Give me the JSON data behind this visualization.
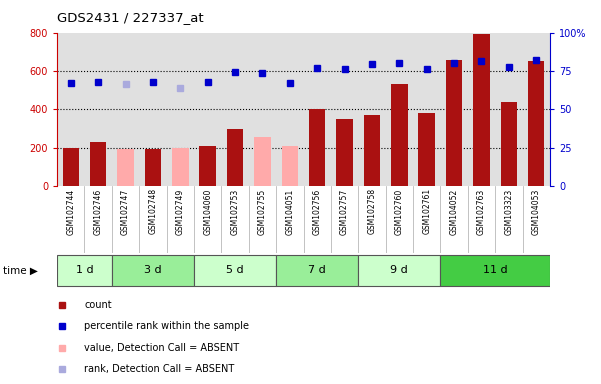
{
  "title": "GDS2431 / 227337_at",
  "samples": [
    "GSM102744",
    "GSM102746",
    "GSM102747",
    "GSM102748",
    "GSM102749",
    "GSM104060",
    "GSM102753",
    "GSM102755",
    "GSM104051",
    "GSM102756",
    "GSM102757",
    "GSM102758",
    "GSM102760",
    "GSM102761",
    "GSM104052",
    "GSM102763",
    "GSM103323",
    "GSM104053"
  ],
  "count_values": [
    200,
    230,
    195,
    195,
    200,
    210,
    300,
    255,
    210,
    400,
    350,
    370,
    535,
    380,
    660,
    795,
    440,
    650
  ],
  "absent_bar_indices": [
    2,
    4,
    7,
    8
  ],
  "percentile_rank": [
    540,
    545,
    535,
    545,
    510,
    545,
    595,
    590,
    540,
    615,
    610,
    635,
    640,
    610,
    640,
    650,
    620,
    655
  ],
  "absent_dot_indices": [
    2,
    4
  ],
  "groups": [
    {
      "label": "1 d",
      "start": 0,
      "end": 2,
      "color": "#ccffcc"
    },
    {
      "label": "3 d",
      "start": 2,
      "end": 5,
      "color": "#99ee99"
    },
    {
      "label": "5 d",
      "start": 5,
      "end": 8,
      "color": "#ccffcc"
    },
    {
      "label": "7 d",
      "start": 8,
      "end": 11,
      "color": "#99ee99"
    },
    {
      "label": "9 d",
      "start": 11,
      "end": 14,
      "color": "#ccffcc"
    },
    {
      "label": "11 d",
      "start": 14,
      "end": 18,
      "color": "#44cc44"
    }
  ],
  "ylim_left": [
    0,
    800
  ],
  "ylim_right": [
    0,
    100
  ],
  "yticks_left": [
    0,
    200,
    400,
    600,
    800
  ],
  "yticks_right": [
    0,
    25,
    50,
    75,
    100
  ],
  "bar_color_present": "#aa1111",
  "bar_color_absent": "#ffaaaa",
  "dot_color_present": "#0000cc",
  "dot_color_absent": "#aaaadd",
  "bg_color": "#e0e0e0",
  "grid_color": "#000000",
  "left_axis_color": "#cc0000",
  "right_axis_color": "#0000cc",
  "label_bg_color": "#cccccc"
}
